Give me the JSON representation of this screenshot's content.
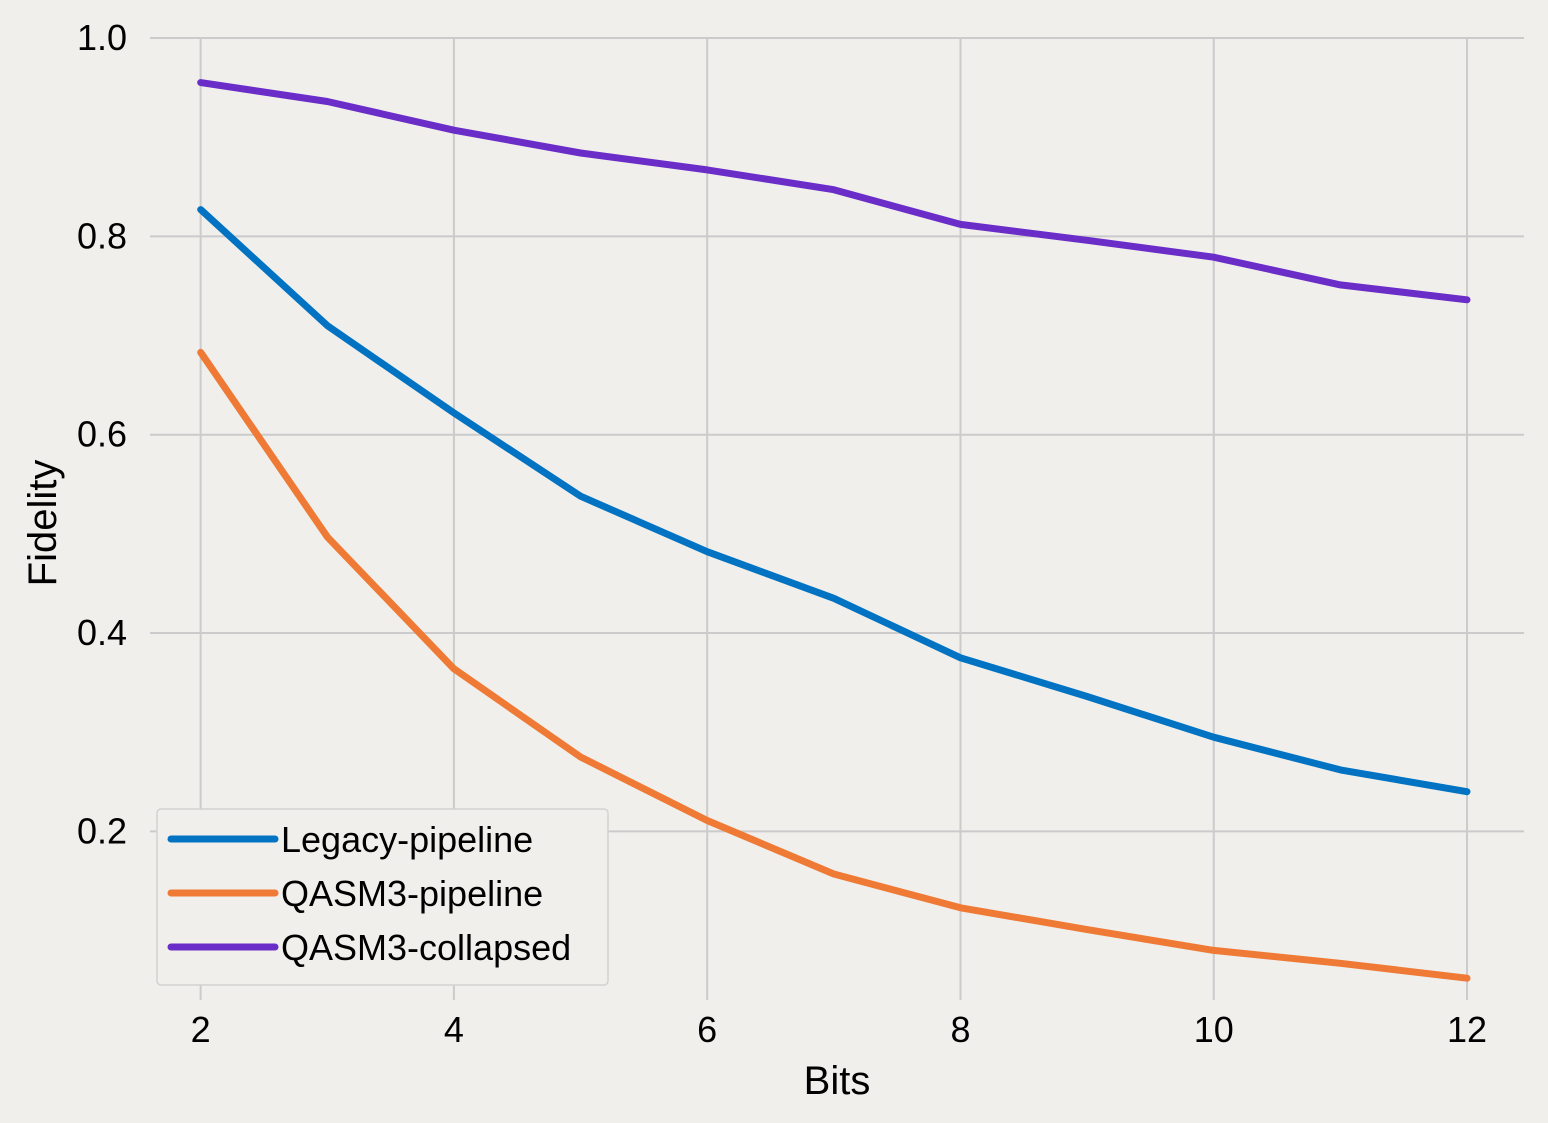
{
  "chart_data": {
    "type": "line",
    "xlabel": "Bits",
    "ylabel": "Fidelity",
    "xlim": [
      1.6,
      12.45
    ],
    "ylim": [
      0.03,
      1.0
    ],
    "xticks": [
      2,
      4,
      6,
      8,
      10,
      12
    ],
    "yticks": [
      0.2,
      0.4,
      0.6,
      0.8,
      1.0
    ],
    "grid": true,
    "legend_position": "lower-left",
    "x": [
      2,
      3,
      4,
      5,
      6,
      7,
      8,
      9,
      10,
      11,
      12
    ],
    "series": [
      {
        "name": "Legacy-pipeline",
        "color": "#0173c2",
        "values": [
          0.827,
          0.71,
          0.622,
          0.538,
          0.482,
          0.435,
          0.375,
          0.336,
          0.295,
          0.262,
          0.24
        ]
      },
      {
        "name": "QASM3-pipeline",
        "color": "#ef7a35",
        "values": [
          0.683,
          0.497,
          0.364,
          0.275,
          0.211,
          0.157,
          0.123,
          0.101,
          0.08,
          0.067,
          0.052
        ]
      },
      {
        "name": "QASM3-collapsed",
        "color": "#6a2dc8",
        "values": [
          0.955,
          0.936,
          0.907,
          0.884,
          0.867,
          0.847,
          0.812,
          0.796,
          0.779,
          0.751,
          0.736
        ]
      }
    ]
  }
}
